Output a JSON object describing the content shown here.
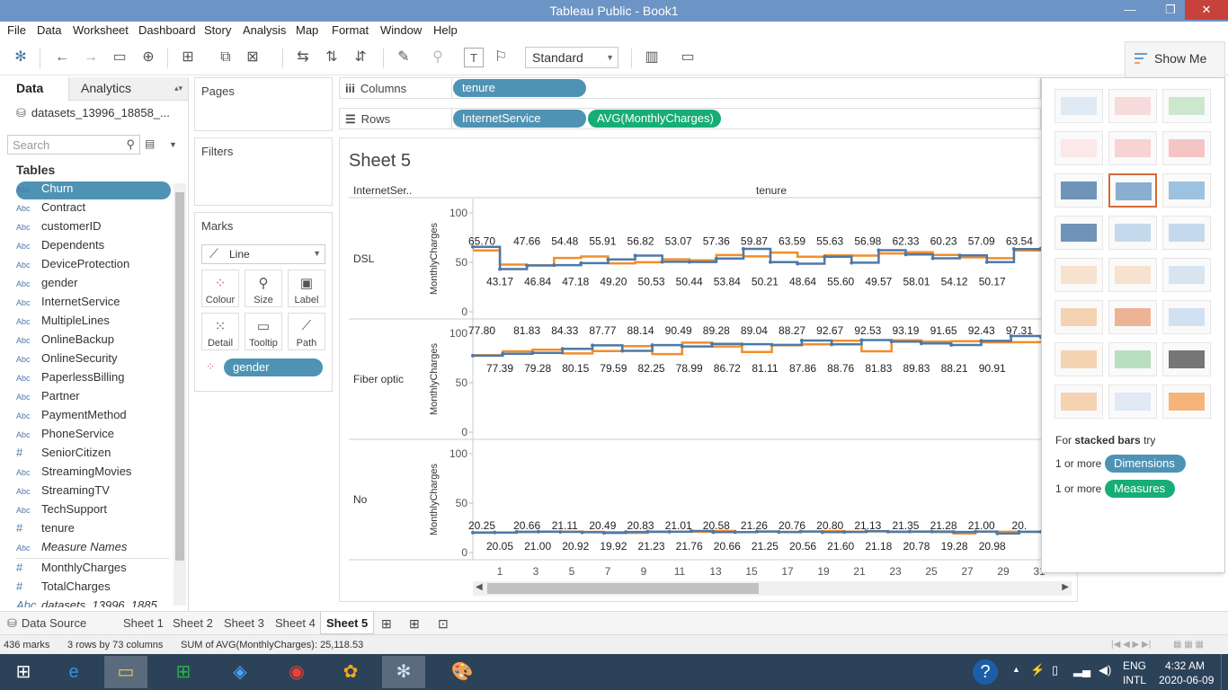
{
  "window": {
    "title": "Tableau Public - Book1",
    "minimize": "—",
    "restore": "❐",
    "close": "✕"
  },
  "menu": [
    "File",
    "Data",
    "Worksheet",
    "Dashboard",
    "Story",
    "Analysis",
    "Map",
    "Format",
    "Window",
    "Help"
  ],
  "toolbar": {
    "view_select": "Standard",
    "show_me": "Show Me"
  },
  "left_pane": {
    "tabs": {
      "data": "Data",
      "analytics": "Analytics"
    },
    "datasource": "datasets_13996_18858_...",
    "search_placeholder": "Search",
    "tables_title": "Tables",
    "fields": [
      {
        "type": "Abc",
        "name": "Churn"
      },
      {
        "type": "Abc",
        "name": "Contract"
      },
      {
        "type": "Abc",
        "name": "customerID"
      },
      {
        "type": "Abc",
        "name": "Dependents"
      },
      {
        "type": "Abc",
        "name": "DeviceProtection"
      },
      {
        "type": "Abc",
        "name": "gender"
      },
      {
        "type": "Abc",
        "name": "InternetService"
      },
      {
        "type": "Abc",
        "name": "MultipleLines"
      },
      {
        "type": "Abc",
        "name": "OnlineBackup"
      },
      {
        "type": "Abc",
        "name": "OnlineSecurity"
      },
      {
        "type": "Abc",
        "name": "PaperlessBilling"
      },
      {
        "type": "Abc",
        "name": "Partner"
      },
      {
        "type": "Abc",
        "name": "PaymentMethod"
      },
      {
        "type": "Abc",
        "name": "PhoneService"
      },
      {
        "type": "#",
        "name": "SeniorCitizen"
      },
      {
        "type": "Abc",
        "name": "StreamingMovies"
      },
      {
        "type": "Abc",
        "name": "StreamingTV"
      },
      {
        "type": "Abc",
        "name": "TechSupport"
      },
      {
        "type": "#",
        "name": "tenure"
      },
      {
        "type": "Abc",
        "name": "Measure Names"
      },
      {
        "type": "#",
        "name": "MonthlyCharges"
      },
      {
        "type": "#",
        "name": "TotalCharges"
      },
      {
        "type": "Abc",
        "name": "datasets_13996_1885..."
      }
    ]
  },
  "cards": {
    "pages": "Pages",
    "filters": "Filters",
    "marks": "Marks",
    "mark_type": "Line",
    "buttons": [
      "Colour",
      "Size",
      "Label",
      "Detail",
      "Tooltip",
      "Path"
    ],
    "color_pill": "gender"
  },
  "shelves": {
    "columns_label": "Columns",
    "rows_label": "Rows",
    "columns_pills": [
      "tenure"
    ],
    "rows_pills": [
      "InternetService",
      "AVG(MonthlyCharges)"
    ]
  },
  "chart_data": {
    "type": "line",
    "title": "Sheet 5",
    "row_header": "InternetSer..",
    "column_header": "tenure",
    "ylabel": "MonthlyCharges",
    "ylim": [
      0,
      100
    ],
    "yticks": [
      0,
      50,
      100
    ],
    "xticks": [
      1,
      3,
      5,
      7,
      9,
      11,
      13,
      15,
      17,
      19,
      21,
      23,
      25,
      27,
      29,
      31
    ],
    "colors": {
      "series_a": "#4e79a7",
      "series_b": "#f28e2b"
    },
    "panels": [
      {
        "name": "DSL",
        "upper_labels": [
          "65.70",
          "47.66",
          "54.48",
          "55.91",
          "56.82",
          "53.07",
          "57.36",
          "59.87",
          "63.59",
          "55.63",
          "56.98",
          "62.33",
          "60.23",
          "57.09",
          "63.54"
        ],
        "lower_labels": [
          "43.17",
          "46.84",
          "47.18",
          "49.20",
          "50.53",
          "50.44",
          "53.84",
          "50.21",
          "48.64",
          "55.60",
          "49.57",
          "58.01",
          "54.12",
          "50.17"
        ],
        "series_a": [
          65.7,
          43.2,
          46.8,
          47.2,
          49.2,
          53.0,
          56.8,
          50.5,
          50.4,
          53.8,
          63.6,
          50.2,
          48.6,
          55.6,
          49.6,
          62.3,
          58.0,
          54.1,
          57.1,
          50.2,
          63.5,
          64.0
        ],
        "series_b": [
          62.0,
          47.7,
          47.0,
          54.5,
          55.9,
          49.0,
          50.1,
          53.1,
          52.0,
          57.4,
          56.0,
          59.9,
          55.6,
          57.0,
          56.8,
          59.0,
          60.2,
          57.5,
          55.0,
          54.2,
          62.0,
          63.0
        ]
      },
      {
        "name": "Fiber optic",
        "upper_labels": [
          "77.80",
          "81.83",
          "84.33",
          "87.77",
          "88.14",
          "90.49",
          "89.28",
          "89.04",
          "88.27",
          "92.67",
          "92.53",
          "93.19",
          "91.65",
          "92.43",
          "97.31"
        ],
        "lower_labels": [
          "77.39",
          "79.28",
          "80.15",
          "79.59",
          "82.25",
          "78.99",
          "86.72",
          "81.11",
          "87.86",
          "88.76",
          "81.83",
          "89.83",
          "88.21",
          "90.91"
        ],
        "series_a": [
          77.4,
          79.3,
          80.2,
          84.3,
          87.8,
          82.3,
          88.1,
          86.7,
          89.3,
          89.0,
          88.3,
          92.7,
          88.8,
          93.2,
          91.6,
          89.8,
          88.2,
          92.4,
          97.3,
          96.0
        ],
        "series_b": [
          77.8,
          81.8,
          83.5,
          79.6,
          82.0,
          87.0,
          79.0,
          90.5,
          86.7,
          81.1,
          87.9,
          88.8,
          92.5,
          81.8,
          93.0,
          91.7,
          92.0,
          90.9,
          91.0,
          92.0
        ]
      },
      {
        "name": "No",
        "upper_labels": [
          "20.25",
          "20.66",
          "21.11",
          "20.49",
          "20.83",
          "21.01",
          "20.58",
          "21.26",
          "20.76",
          "20.80",
          "21.13",
          "21.35",
          "21.28",
          "21.00",
          "20."
        ],
        "lower_labels": [
          "20.05",
          "21.00",
          "20.92",
          "19.92",
          "21.23",
          "21.76",
          "20.66",
          "21.25",
          "20.56",
          "21.60",
          "21.18",
          "20.78",
          "19.28",
          "20.98"
        ],
        "series_a": [
          20.1,
          20.3,
          21.0,
          21.1,
          20.9,
          20.5,
          19.9,
          20.8,
          21.2,
          21.0,
          21.8,
          20.6,
          20.7,
          21.3,
          20.8,
          21.3,
          20.6,
          20.8,
          21.6,
          21.1,
          21.2,
          21.3,
          20.8,
          21.3,
          19.3,
          21.0,
          21.0
        ],
        "series_b": [
          20.3,
          20.1,
          20.7,
          21.0,
          21.1,
          20.9,
          20.5,
          19.9,
          20.8,
          21.2,
          21.0,
          21.8,
          20.6,
          21.3,
          20.8,
          21.3,
          21.6,
          21.1,
          21.4,
          20.8,
          21.3,
          20.6,
          19.3,
          21.0,
          21.0,
          20.9,
          20.9
        ]
      }
    ]
  },
  "show_me": {
    "hint_prefix": "For ",
    "hint_bold": "stacked bars",
    "hint_suffix": " try",
    "dims_prefix": "1 or more",
    "dims_pill": "Dimensions",
    "meas_prefix": "1 or more",
    "meas_pill": "Measures"
  },
  "sheet_tabs": [
    "Data Source",
    "Sheet 1",
    "Sheet 2",
    "Sheet 3",
    "Sheet 4",
    "Sheet 5"
  ],
  "status": {
    "marks": "436 marks",
    "dims": "3 rows by 73 columns",
    "sum": "SUM of AVG(MonthlyCharges): 25,118.53"
  },
  "taskbar": {
    "lang1": "ENG",
    "lang2": "INTL",
    "time": "4:32 AM",
    "date": "2020-06-09"
  }
}
